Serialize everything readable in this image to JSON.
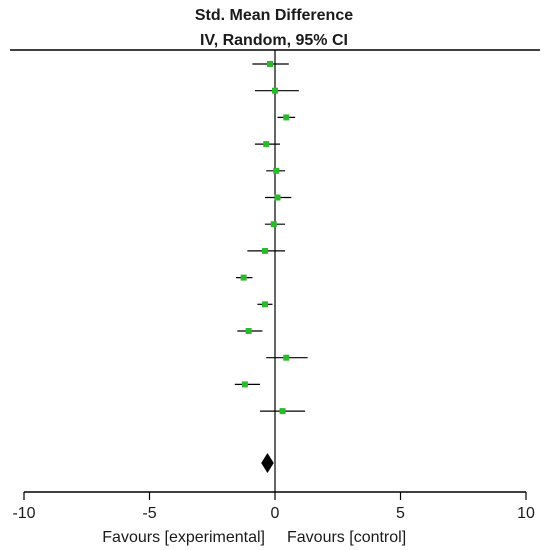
{
  "chart_data": {
    "type": "forest",
    "title": "Std. Mean Difference",
    "subtitle": "IV, Random, 95% CI",
    "xlim": [
      -10,
      10
    ],
    "ticks": [
      -10,
      -5,
      0,
      5,
      10
    ],
    "tick_labels": [
      "-10",
      "-5",
      "0",
      "5",
      "10"
    ],
    "favours_left": "Favours [experimental]",
    "favours_right": "Favours [control]",
    "studies": [
      {
        "estimate": -0.2,
        "ci_low": -0.9,
        "ci_high": 0.55
      },
      {
        "estimate": 0.0,
        "ci_low": -0.8,
        "ci_high": 0.95
      },
      {
        "estimate": 0.45,
        "ci_low": 0.1,
        "ci_high": 0.8
      },
      {
        "estimate": -0.35,
        "ci_low": -0.8,
        "ci_high": 0.2
      },
      {
        "estimate": 0.05,
        "ci_low": -0.35,
        "ci_high": 0.4
      },
      {
        "estimate": 0.1,
        "ci_low": -0.4,
        "ci_high": 0.65
      },
      {
        "estimate": -0.05,
        "ci_low": -0.4,
        "ci_high": 0.4
      },
      {
        "estimate": -0.4,
        "ci_low": -1.1,
        "ci_high": 0.4
      },
      {
        "estimate": -1.25,
        "ci_low": -1.55,
        "ci_high": -0.9
      },
      {
        "estimate": -0.4,
        "ci_low": -0.7,
        "ci_high": -0.1
      },
      {
        "estimate": -1.05,
        "ci_low": -1.5,
        "ci_high": -0.5
      },
      {
        "estimate": 0.45,
        "ci_low": -0.35,
        "ci_high": 1.3
      },
      {
        "estimate": -1.2,
        "ci_low": -1.6,
        "ci_high": -0.6
      },
      {
        "estimate": 0.3,
        "ci_low": -0.6,
        "ci_high": 1.2
      }
    ],
    "overall": {
      "estimate": -0.3,
      "ci_low": -0.55,
      "ci_high": -0.05
    },
    "colors": {
      "point": "#2db82d",
      "line": "#000000",
      "diamond": "#000000"
    }
  }
}
